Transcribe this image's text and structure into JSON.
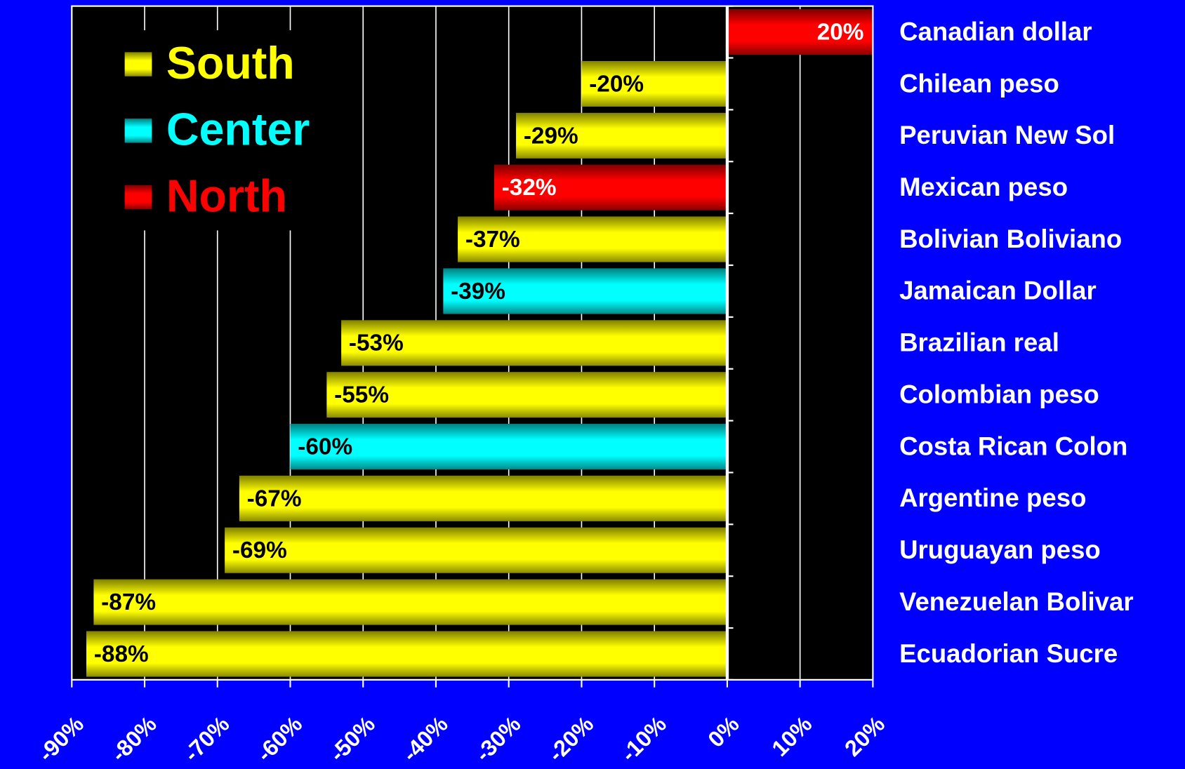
{
  "chart_data": {
    "type": "bar",
    "orientation": "horizontal",
    "categories": [
      "Canadian dollar",
      "Chilean peso",
      "Peruvian New Sol",
      "Mexican peso",
      "Bolivian Boliviano",
      "Jamaican Dollar",
      "Brazilian real",
      "Colombian peso",
      "Costa Rican Colon",
      "Argentine peso",
      "Uruguayan peso",
      "Venezuelan Bolivar",
      "Ecuadorian Sucre"
    ],
    "series": [
      {
        "name": "South",
        "color": "#ffff00",
        "values": [
          null,
          -20,
          -29,
          null,
          -37,
          null,
          -53,
          -55,
          null,
          -67,
          -69,
          -87,
          -88
        ],
        "value_labels": [
          null,
          "-20%",
          "-29%",
          null,
          "-37%",
          null,
          "-53%",
          "-55%",
          null,
          "-67%",
          "-69%",
          "-87%",
          "-88%"
        ]
      },
      {
        "name": "Center",
        "color": "#00ffff",
        "values": [
          null,
          null,
          null,
          null,
          null,
          -39,
          null,
          null,
          -60,
          null,
          null,
          null,
          null
        ],
        "value_labels": [
          null,
          null,
          null,
          null,
          null,
          "-39%",
          null,
          null,
          "-60%",
          null,
          null,
          null,
          null
        ]
      },
      {
        "name": "North",
        "color": "#ff0000",
        "values": [
          20,
          null,
          null,
          -32,
          null,
          null,
          null,
          null,
          null,
          null,
          null,
          null,
          null
        ],
        "value_labels": [
          "20%",
          null,
          null,
          "-32%",
          null,
          null,
          null,
          null,
          null,
          null,
          null,
          null,
          null
        ]
      }
    ],
    "xlim": [
      -90,
      20
    ],
    "xticks": [
      {
        "value": -90,
        "label": "-90%"
      },
      {
        "value": -80,
        "label": "-80%"
      },
      {
        "value": -70,
        "label": "-70%"
      },
      {
        "value": -60,
        "label": "-60%"
      },
      {
        "value": -50,
        "label": "-50%"
      },
      {
        "value": -40,
        "label": "-40%"
      },
      {
        "value": -30,
        "label": "-30%"
      },
      {
        "value": -20,
        "label": "-20%"
      },
      {
        "value": -10,
        "label": "-10%"
      },
      {
        "value": 0,
        "label": "0%"
      },
      {
        "value": 10,
        "label": "10%"
      },
      {
        "value": 20,
        "label": "20%"
      }
    ],
    "grid": true,
    "legend": "upper left"
  }
}
